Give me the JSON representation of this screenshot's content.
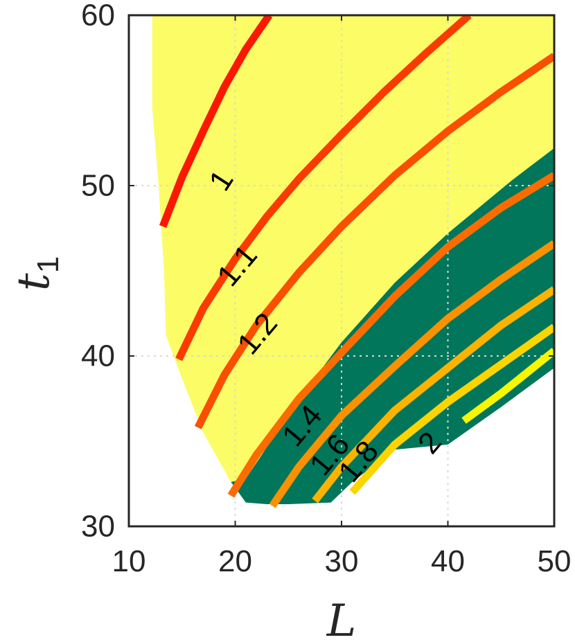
{
  "chart_data": {
    "type": "contour",
    "xlabel": "L",
    "ylabel": "t",
    "ylabel_subscript": "1",
    "xlim": [
      10,
      50
    ],
    "ylim": [
      30,
      60
    ],
    "x_ticks": [
      "10",
      "20",
      "30",
      "40",
      "50"
    ],
    "y_ticks": [
      "30",
      "40",
      "50",
      "60"
    ],
    "grid": true,
    "colors": {
      "yellow_region": "#fcfc66",
      "green_region": "#02765a",
      "axis": "#262626",
      "grid": "#d9d9d9"
    },
    "regions": [
      {
        "color_key": "yellow_region",
        "boundary": [
          [
            12.2,
            60
          ],
          [
            50,
            60
          ],
          [
            50,
            52.2
          ],
          [
            46,
            50.3
          ],
          [
            40,
            47.2
          ],
          [
            35,
            44.3
          ],
          [
            30,
            40.8
          ],
          [
            27,
            38.3
          ],
          [
            24,
            35.6
          ],
          [
            21,
            32.8
          ],
          [
            19.6,
            32.6
          ],
          [
            17,
            35.5
          ],
          [
            14.8,
            39
          ],
          [
            13.5,
            41.2
          ],
          [
            13.3,
            45
          ],
          [
            12.8,
            50
          ],
          [
            12.2,
            54.5
          ]
        ]
      },
      {
        "color_key": "green_region",
        "boundary": [
          [
            19.6,
            32.6
          ],
          [
            21,
            32.8
          ],
          [
            24,
            35.6
          ],
          [
            27,
            38.3
          ],
          [
            30,
            40.8
          ],
          [
            35,
            44.3
          ],
          [
            40,
            47.2
          ],
          [
            46,
            50.3
          ],
          [
            50,
            52.2
          ],
          [
            50,
            39.3
          ],
          [
            45,
            37
          ],
          [
            40,
            34.8
          ],
          [
            35,
            34.5
          ],
          [
            31,
            32.6
          ],
          [
            29,
            31.4
          ],
          [
            25,
            31.3
          ],
          [
            23,
            31.3
          ],
          [
            21,
            31.4
          ]
        ]
      }
    ],
    "contours": [
      {
        "level": "1",
        "color": "#fa1900",
        "points": [
          [
            13.2,
            47.6
          ],
          [
            15,
            50.5
          ],
          [
            17,
            53.2
          ],
          [
            19,
            55.8
          ],
          [
            21,
            58
          ],
          [
            23.2,
            60
          ]
        ],
        "label": "1",
        "label_at": [
          18.7,
          50.3
        ],
        "label_angle": -57
      },
      {
        "level": "1.1",
        "color": "#fa3b00",
        "points": [
          [
            14.7,
            39.8
          ],
          [
            17,
            42.8
          ],
          [
            20,
            45.7
          ],
          [
            23,
            48.2
          ],
          [
            26,
            50.4
          ],
          [
            30,
            53
          ],
          [
            34,
            55.5
          ],
          [
            38,
            57.8
          ],
          [
            42,
            60
          ]
        ],
        "label": "1.1",
        "label_at": [
          20.2,
          45.3
        ],
        "label_angle": -50
      },
      {
        "level": "1.2",
        "color": "#fa4f00",
        "points": [
          [
            16.5,
            35.8
          ],
          [
            19,
            38.9
          ],
          [
            22,
            41.8
          ],
          [
            26,
            44.9
          ],
          [
            30,
            47.6
          ],
          [
            35,
            50.6
          ],
          [
            40,
            53.2
          ],
          [
            45,
            55.5
          ],
          [
            50,
            57.6
          ]
        ],
        "label": "1.2",
        "label_at": [
          22.1,
          41.3
        ],
        "label_angle": -50
      },
      {
        "level": "1.4",
        "color": "#fa6c00",
        "points": [
          [
            19.6,
            31.8
          ],
          [
            22,
            34.2
          ],
          [
            26,
            37.5
          ],
          [
            30,
            40.2
          ],
          [
            35,
            43.5
          ],
          [
            40,
            46.4
          ],
          [
            45,
            48.7
          ],
          [
            50,
            50.6
          ]
        ],
        "label": "1.4",
        "label_at": [
          26.3,
          35.9
        ],
        "label_angle": -50
      },
      {
        "level": "1.6",
        "color": "#fa9100",
        "points": [
          [
            23.5,
            31.2
          ],
          [
            26,
            33.5
          ],
          [
            30,
            36.5
          ],
          [
            35,
            39.4
          ],
          [
            40,
            42.2
          ],
          [
            45,
            44.5
          ],
          [
            50,
            46.6
          ]
        ],
        "label": "1.6",
        "label_at": [
          28.9,
          34.2
        ],
        "label_angle": -50
      },
      {
        "level": "1.8",
        "color": "#fcb300",
        "points": [
          [
            27.5,
            31.5
          ],
          [
            30,
            33.5
          ],
          [
            35,
            36.8
          ],
          [
            40,
            39.3
          ],
          [
            45,
            41.8
          ],
          [
            50,
            43.9
          ]
        ],
        "label": "1.8",
        "label_at": [
          31.6,
          33.8
        ],
        "label_angle": -50
      },
      {
        "level": "2",
        "color": "#fcd500",
        "points": [
          [
            31,
            32
          ],
          [
            35,
            34.8
          ],
          [
            40,
            37.3
          ],
          [
            45,
            39.5
          ],
          [
            50,
            41.7
          ]
        ],
        "label": "2",
        "label_at": [
          38.3,
          34.9
        ],
        "label_angle": -50
      },
      {
        "level": "",
        "color": "#f7f700",
        "points": [
          [
            41.5,
            36.2
          ],
          [
            45,
            37.8
          ],
          [
            50,
            40.3
          ]
        ],
        "label": "",
        "label_at": null,
        "label_angle": 0
      }
    ]
  }
}
